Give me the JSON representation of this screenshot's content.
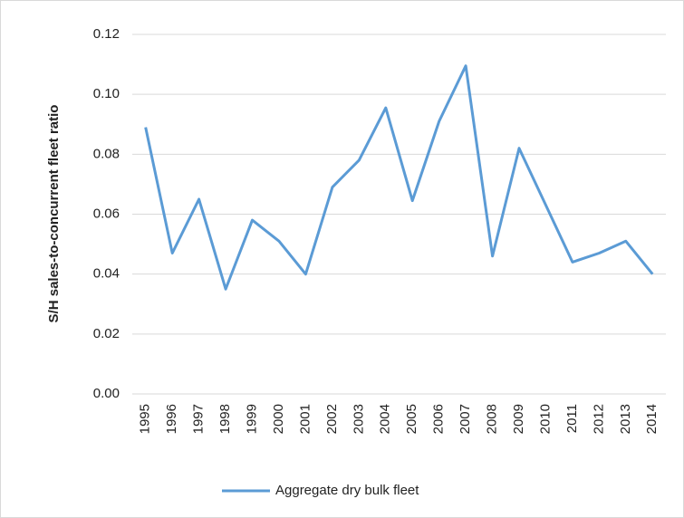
{
  "chart_data": {
    "type": "line",
    "y_label": "S/H sales-to-concurrent fleet ratio",
    "categories": [
      "1995",
      "1996",
      "1997",
      "1998",
      "1999",
      "2000",
      "2001",
      "2002",
      "2003",
      "2004",
      "2005",
      "2006",
      "2007",
      "2008",
      "2009",
      "2010",
      "2011",
      "2012",
      "2013",
      "2014"
    ],
    "series": [
      {
        "name": "Aggregate dry bulk fleet",
        "color": "#5b9bd5",
        "values": [
          0.089,
          0.047,
          0.065,
          0.035,
          0.058,
          0.051,
          0.04,
          0.069,
          0.078,
          0.0955,
          0.0645,
          0.091,
          0.1095,
          0.046,
          0.082,
          0.063,
          0.044,
          0.047,
          0.051,
          0.04
        ]
      }
    ],
    "ylim": [
      0,
      0.12
    ],
    "yticks": [
      {
        "value": 0,
        "label": "0.00"
      },
      0.02,
      0.04,
      0.06,
      0.08,
      {
        "value": 0.1,
        "label": "0.10"
      },
      0.12
    ],
    "grid": true,
    "legend": "bottom"
  }
}
